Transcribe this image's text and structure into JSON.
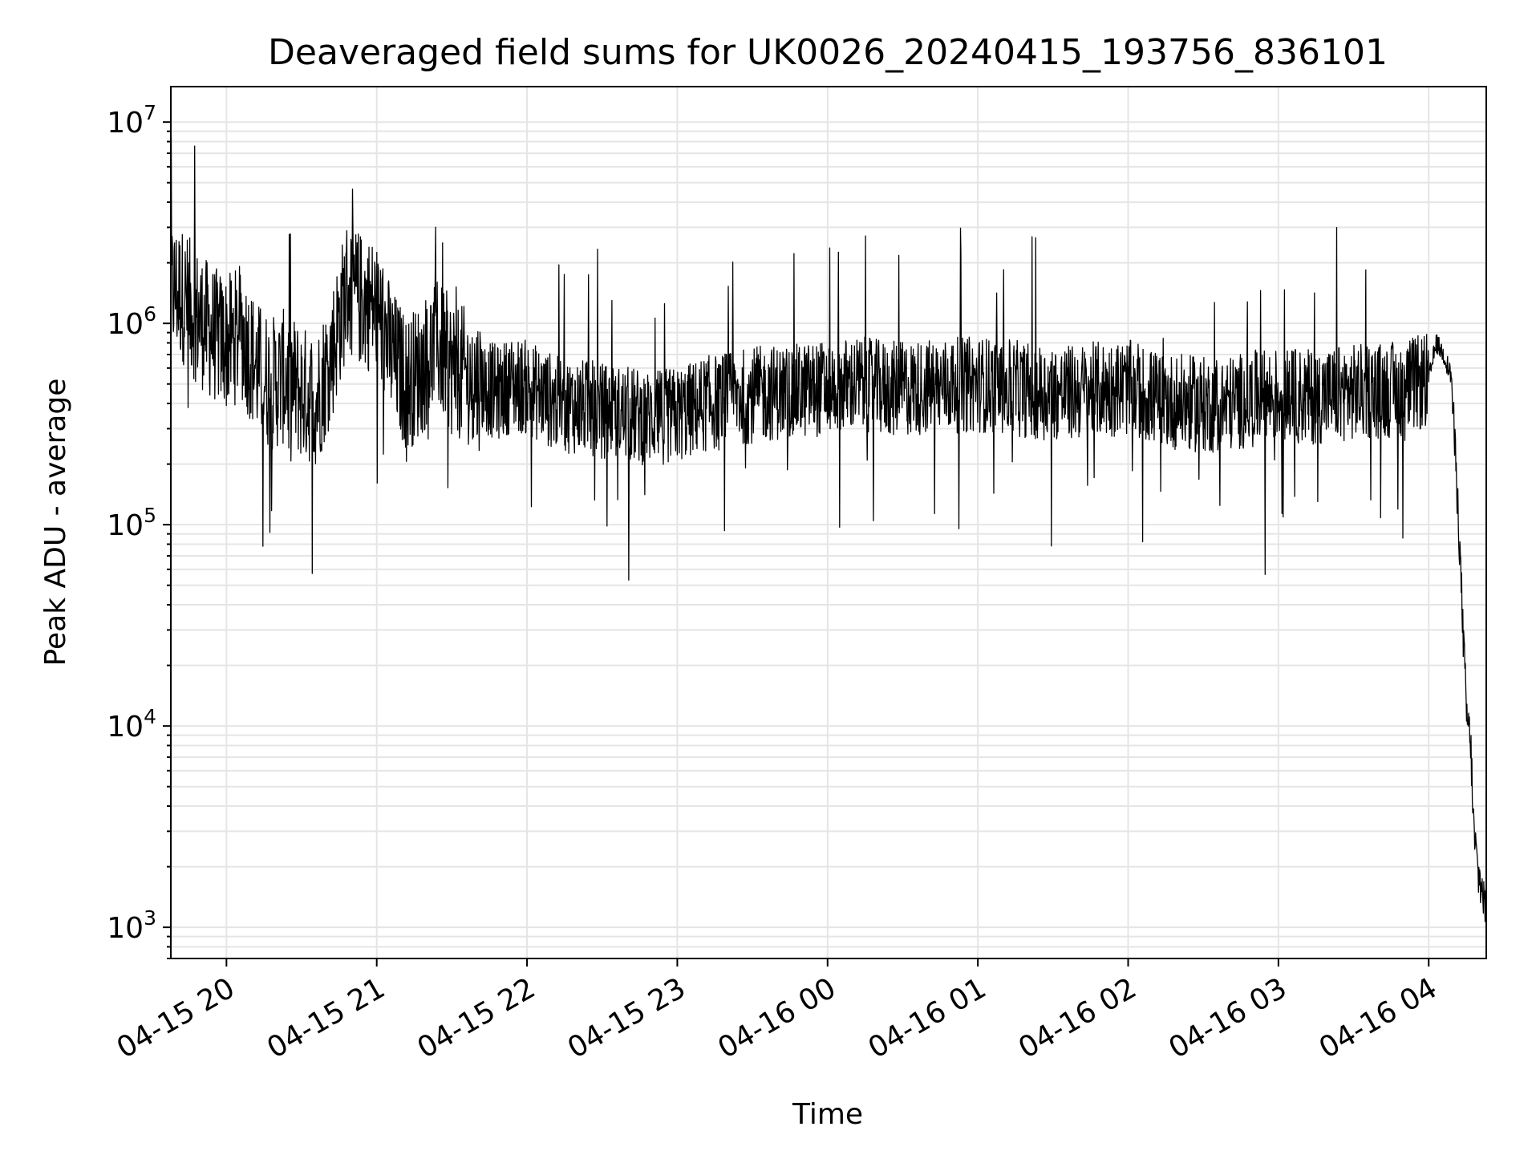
{
  "chart_data": {
    "type": "line",
    "title": "Deaveraged field sums for UK0026_20240415_193756_836101",
    "xlabel": "Time",
    "ylabel": "Peak ADU - average",
    "yscale": "log",
    "ylim": [
      700,
      15000000
    ],
    "xlim": [
      "04-15 19:37:48",
      "04-16 04:23:00"
    ],
    "grid": true,
    "line_color": "#000000",
    "grid_color": "#e5e5e5",
    "x_ticks": [
      {
        "label": "04-15 20",
        "hours": 20
      },
      {
        "label": "04-15 21",
        "hours": 21
      },
      {
        "label": "04-15 22",
        "hours": 22
      },
      {
        "label": "04-15 23",
        "hours": 23
      },
      {
        "label": "04-16 00",
        "hours": 24
      },
      {
        "label": "04-16 01",
        "hours": 25
      },
      {
        "label": "04-16 02",
        "hours": 26
      },
      {
        "label": "04-16 03",
        "hours": 27
      },
      {
        "label": "04-16 04",
        "hours": 28
      }
    ],
    "y_ticks": [
      {
        "base": "10",
        "exp": "3",
        "value": 1000
      },
      {
        "base": "10",
        "exp": "4",
        "value": 10000
      },
      {
        "base": "10",
        "exp": "5",
        "value": 100000
      },
      {
        "base": "10",
        "exp": "6",
        "value": 1000000
      },
      {
        "base": "10",
        "exp": "7",
        "value": 10000000
      }
    ],
    "series": [
      {
        "x_hours": [
          19.63,
          19.7,
          19.8,
          19.9,
          20.0,
          20.1,
          20.2,
          20.3,
          20.4,
          20.5,
          20.6,
          20.7,
          20.8,
          20.9,
          21.0,
          21.1,
          21.2,
          21.3,
          21.4,
          21.5,
          21.6,
          21.7,
          21.8,
          21.9,
          22.0,
          22.2,
          22.4,
          22.6,
          22.8,
          23.0,
          23.2,
          23.4,
          23.6,
          23.8,
          24.0,
          24.2,
          24.4,
          24.6,
          24.8,
          25.0,
          25.2,
          25.4,
          25.6,
          25.8,
          26.0,
          26.2,
          26.4,
          26.6,
          26.8,
          27.0,
          27.2,
          27.4,
          27.6,
          27.8,
          28.0,
          28.05,
          28.1,
          28.15,
          28.2,
          28.25,
          28.28,
          28.3,
          28.33,
          28.36,
          28.38
        ],
        "values": [
          1500000,
          1400000,
          1100000,
          900000,
          800000,
          900000,
          600000,
          500000,
          550000,
          450000,
          420000,
          700000,
          1500000,
          1300000,
          1200000,
          700000,
          500000,
          600000,
          800000,
          600000,
          550000,
          500000,
          450000,
          500000,
          480000,
          400000,
          380000,
          360000,
          340000,
          350000,
          400000,
          430000,
          450000,
          460000,
          480000,
          500000,
          470000,
          480000,
          490000,
          500000,
          480000,
          460000,
          450000,
          470000,
          480000,
          420000,
          400000,
          390000,
          420000,
          440000,
          430000,
          450000,
          460000,
          470000,
          520000,
          800000,
          700000,
          550000,
          100000,
          12000,
          8000,
          3000,
          1800,
          1500,
          1200
        ]
      }
    ]
  }
}
